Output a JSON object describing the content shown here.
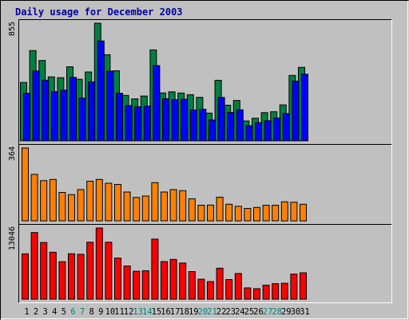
{
  "title": "Daily usage for December 2003",
  "colors": {
    "background": "#c0c0c0",
    "panel": "#c0c0c0",
    "title": "#0000a0",
    "hits": "#008040",
    "files": "#0000ff",
    "kbytes": "#ff8000",
    "visits": "#ff0000",
    "weekend_label": "#008080",
    "weekday_label": "#000000"
  },
  "chart_data": [
    {
      "type": "bar",
      "title": "Daily usage for December 2003",
      "categories": [
        "1",
        "2",
        "3",
        "4",
        "5",
        "6",
        "7",
        "8",
        "9",
        "10",
        "11",
        "12",
        "13",
        "14",
        "15",
        "16",
        "17",
        "18",
        "19",
        "20",
        "21",
        "22",
        "23",
        "24",
        "25",
        "26",
        "27",
        "28",
        "29",
        "30",
        "31"
      ],
      "weekend_days": [
        "6",
        "7",
        "13",
        "14",
        "20",
        "21",
        "27",
        "28"
      ],
      "ymax_label": "855",
      "ylim": [
        0,
        855
      ],
      "series": [
        {
          "values": [
            424,
            656,
            584,
            465,
            459,
            538,
            447,
            500,
            855,
            626,
            509,
            330,
            305,
            325,
            661,
            348,
            356,
            347,
            335,
            316,
            201,
            440,
            259,
            293,
            144,
            164,
            205,
            211,
            261,
            475,
            534
          ]
        },
        {
          "values": [
            346,
            508,
            441,
            357,
            368,
            461,
            310,
            428,
            726,
            506,
            346,
            256,
            248,
            252,
            547,
            306,
            299,
            302,
            224,
            230,
            151,
            315,
            206,
            225,
            110,
            132,
            146,
            165,
            198,
            434,
            484
          ]
        }
      ]
    },
    {
      "type": "bar",
      "categories": [
        "1",
        "2",
        "3",
        "4",
        "5",
        "6",
        "7",
        "8",
        "9",
        "10",
        "11",
        "12",
        "13",
        "14",
        "15",
        "16",
        "17",
        "18",
        "19",
        "20",
        "21",
        "22",
        "23",
        "24",
        "25",
        "26",
        "27",
        "28",
        "29",
        "30",
        "31"
      ],
      "ymax_label": "364",
      "ylim": [
        0,
        364
      ],
      "series": [
        {
          "values": [
            364,
            232,
            201,
            207,
            142,
            131,
            156,
            198,
            207,
            188,
            182,
            144,
            117,
            124,
            191,
            144,
            156,
            151,
            110,
            78,
            79,
            118,
            83,
            73,
            62,
            67,
            78,
            78,
            95,
            93,
            83
          ]
        }
      ]
    },
    {
      "type": "bar",
      "categories": [
        "1",
        "2",
        "3",
        "4",
        "5",
        "6",
        "7",
        "8",
        "9",
        "10",
        "11",
        "12",
        "13",
        "14",
        "15",
        "16",
        "17",
        "18",
        "19",
        "20",
        "21",
        "22",
        "23",
        "24",
        "25",
        "26",
        "27",
        "28",
        "29",
        "30",
        "31"
      ],
      "ymax_label": "13046",
      "ylim": [
        0,
        13046
      ],
      "series": [
        {
          "values": [
            8310,
            12210,
            10390,
            8600,
            6870,
            8330,
            8230,
            10430,
            13046,
            10430,
            7540,
            6090,
            5120,
            5220,
            11010,
            6890,
            7280,
            6630,
            5050,
            3660,
            3230,
            5680,
            3590,
            4700,
            2070,
            1920,
            2580,
            2850,
            2920,
            4610,
            4840
          ]
        }
      ]
    }
  ]
}
